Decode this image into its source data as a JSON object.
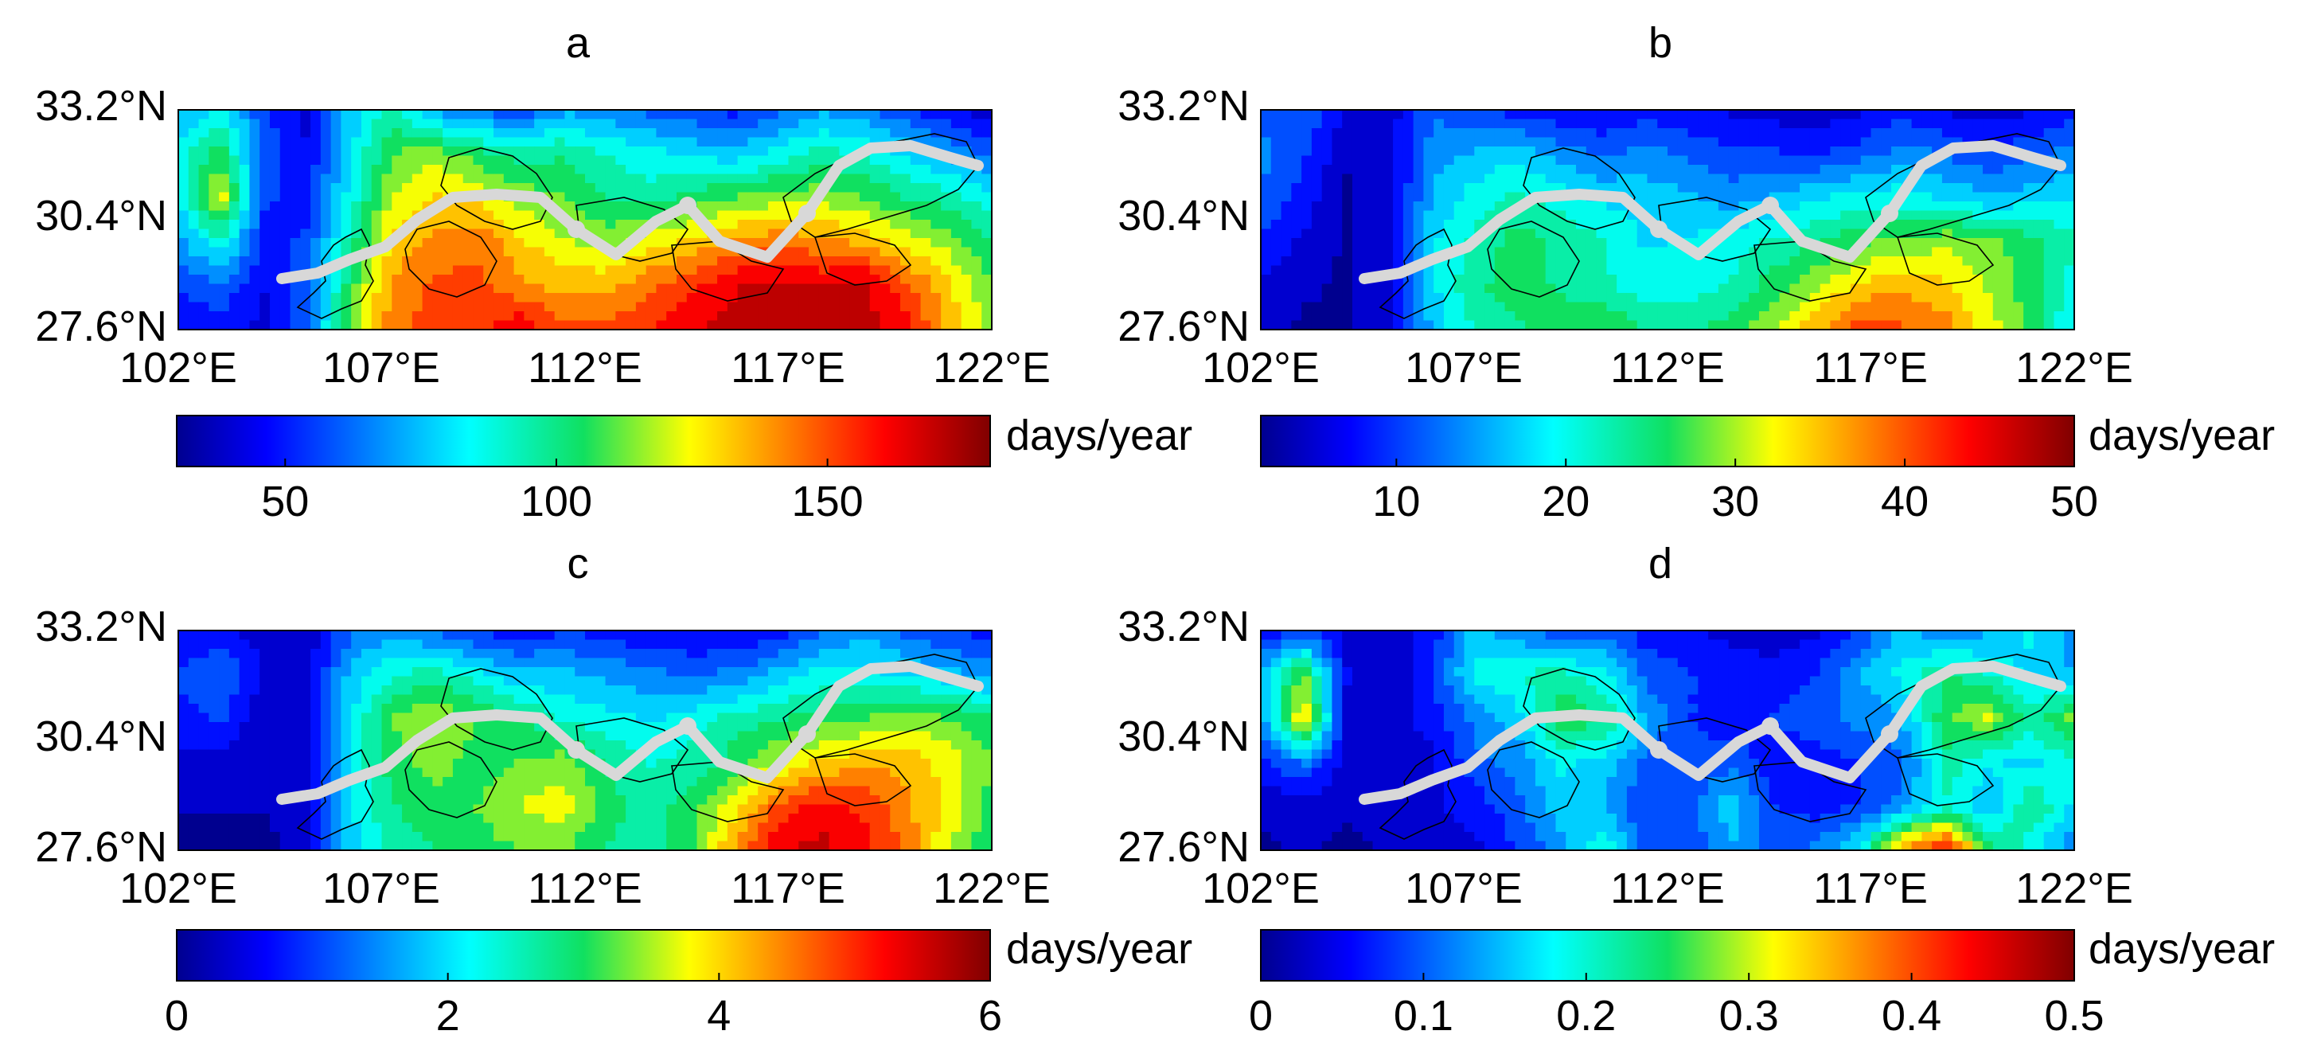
{
  "figure": {
    "panels": [
      {
        "id": "a",
        "title": "a",
        "lat_labels": [
          "33.2°N",
          "30.4°N",
          "27.6°N"
        ],
        "lon_labels": [
          "102°E",
          "107°E",
          "112°E",
          "117°E",
          "122°E"
        ],
        "colorbar": {
          "min": 30,
          "max": 180,
          "ticks": [
            "50",
            "100",
            "150"
          ],
          "tick_values": [
            50,
            100,
            150
          ],
          "unit": "days/year"
        },
        "field": [
          [
            70,
            85,
            55,
            40,
            75,
            95,
            70,
            60,
            55,
            70,
            65,
            60,
            55,
            50,
            60,
            70,
            65,
            55,
            45,
            40
          ],
          [
            85,
            105,
            60,
            45,
            80,
            110,
            115,
            105,
            95,
            100,
            90,
            85,
            80,
            75,
            85,
            95,
            90,
            80,
            70,
            60
          ],
          [
            80,
            125,
            55,
            50,
            85,
            120,
            130,
            125,
            115,
            110,
            100,
            95,
            105,
            110,
            115,
            115,
            110,
            100,
            95,
            85
          ],
          [
            70,
            90,
            50,
            55,
            95,
            130,
            140,
            145,
            130,
            120,
            115,
            125,
            130,
            140,
            145,
            140,
            135,
            125,
            115,
            100
          ],
          [
            55,
            60,
            45,
            60,
            105,
            140,
            150,
            150,
            140,
            135,
            135,
            145,
            155,
            165,
            170,
            165,
            170,
            150,
            130,
            110
          ],
          [
            45,
            50,
            40,
            60,
            110,
            145,
            150,
            155,
            165,
            150,
            150,
            155,
            165,
            170,
            175,
            175,
            170,
            160,
            135,
            115
          ]
        ]
      },
      {
        "id": "b",
        "title": "b",
        "lat_labels": [
          "33.2°N",
          "30.4°N",
          "27.6°N"
        ],
        "lon_labels": [
          "102°E",
          "107°E",
          "112°E",
          "117°E",
          "122°E"
        ],
        "colorbar": {
          "min": 2,
          "max": 50,
          "ticks": [
            "10",
            "20",
            "30",
            "40",
            "50"
          ],
          "tick_values": [
            10,
            20,
            30,
            40,
            50
          ],
          "unit": "days/year"
        },
        "field": [
          [
            10,
            12,
            6,
            5,
            12,
            10,
            8,
            7,
            6,
            8,
            7,
            6,
            5,
            5,
            6,
            8,
            6,
            5,
            6,
            8
          ],
          [
            14,
            10,
            4,
            5,
            14,
            16,
            18,
            14,
            12,
            14,
            12,
            10,
            10,
            9,
            11,
            14,
            12,
            10,
            12,
            14
          ],
          [
            12,
            8,
            3,
            5,
            16,
            20,
            22,
            20,
            18,
            17,
            16,
            14,
            16,
            18,
            20,
            20,
            18,
            16,
            17,
            18
          ],
          [
            9,
            6,
            3,
            6,
            18,
            22,
            26,
            24,
            22,
            18,
            19,
            20,
            22,
            24,
            27,
            28,
            30,
            28,
            26,
            22
          ],
          [
            6,
            4,
            3,
            6,
            18,
            24,
            26,
            24,
            22,
            20,
            20,
            22,
            26,
            30,
            34,
            36,
            34,
            30,
            26,
            20
          ],
          [
            4,
            3,
            3,
            6,
            16,
            22,
            24,
            26,
            28,
            24,
            24,
            26,
            30,
            36,
            42,
            40,
            38,
            32,
            26,
            18
          ]
        ]
      },
      {
        "id": "c",
        "title": "c",
        "lat_labels": [
          "33.2°N",
          "30.4°N",
          "27.6°N"
        ],
        "lon_labels": [
          "102°E",
          "107°E",
          "112°E",
          "117°E",
          "122°E"
        ],
        "colorbar": {
          "min": 0,
          "max": 6,
          "ticks": [
            "0",
            "2",
            "4",
            "6"
          ],
          "tick_values": [
            0,
            2,
            4,
            6
          ],
          "unit": "days/year"
        },
        "field": [
          [
            0.5,
            0.6,
            0.4,
            0.3,
            1.2,
            1.6,
            1.2,
            0.9,
            0.7,
            0.9,
            0.8,
            0.6,
            0.5,
            0.5,
            0.7,
            1.2,
            1.6,
            1.2,
            0.9,
            0.8
          ],
          [
            1.0,
            1.4,
            0.5,
            0.4,
            1.8,
            2.4,
            2.6,
            2.2,
            1.8,
            1.8,
            1.6,
            1.4,
            1.3,
            1.4,
            1.8,
            2.2,
            2.2,
            2.0,
            1.8,
            1.6
          ],
          [
            0.8,
            1.0,
            0.3,
            0.4,
            2.0,
            3.2,
            3.6,
            3.2,
            2.8,
            2.4,
            2.2,
            2.0,
            2.2,
            2.6,
            2.8,
            3.0,
            3.2,
            3.4,
            3.2,
            2.8
          ],
          [
            0.4,
            0.4,
            0.2,
            0.4,
            2.2,
            3.0,
            3.4,
            3.0,
            3.2,
            3.4,
            2.8,
            2.4,
            2.6,
            3.0,
            3.6,
            4.0,
            4.2,
            4.2,
            3.8,
            3.2
          ],
          [
            0.2,
            0.2,
            0.2,
            0.4,
            2.0,
            2.8,
            3.0,
            3.2,
            3.6,
            3.8,
            3.0,
            2.6,
            3.0,
            3.8,
            4.8,
            5.2,
            5.0,
            4.4,
            3.8,
            3.0
          ],
          [
            0.1,
            0.1,
            0.1,
            0.3,
            1.8,
            2.6,
            2.8,
            3.0,
            3.2,
            3.2,
            2.8,
            2.6,
            3.2,
            4.4,
            5.4,
            5.6,
            5.2,
            4.6,
            3.6,
            2.8
          ]
        ]
      },
      {
        "id": "d",
        "title": "d",
        "lat_labels": [
          "33.2°N",
          "30.4°N",
          "27.6°N"
        ],
        "lon_labels": [
          "102°E",
          "107°E",
          "112°E",
          "117°E",
          "122°E"
        ],
        "colorbar": {
          "min": 0,
          "max": 0.5,
          "ticks": [
            "0",
            "0.1",
            "0.2",
            "0.3",
            "0.4",
            "0.5"
          ],
          "tick_values": [
            0,
            0.1,
            0.2,
            0.3,
            0.4,
            0.5
          ],
          "unit": "days/year"
        },
        "field": [
          [
            0.05,
            0.08,
            0.03,
            0.02,
            0.06,
            0.15,
            0.12,
            0.08,
            0.1,
            0.06,
            0.05,
            0.04,
            0.03,
            0.04,
            0.08,
            0.16,
            0.1,
            0.14,
            0.18,
            0.12
          ],
          [
            0.15,
            0.28,
            0.05,
            0.02,
            0.08,
            0.18,
            0.2,
            0.22,
            0.18,
            0.1,
            0.08,
            0.06,
            0.06,
            0.08,
            0.14,
            0.18,
            0.24,
            0.2,
            0.16,
            0.14
          ],
          [
            0.12,
            0.34,
            0.04,
            0.03,
            0.06,
            0.12,
            0.16,
            0.26,
            0.24,
            0.14,
            0.08,
            0.06,
            0.08,
            0.1,
            0.12,
            0.14,
            0.26,
            0.3,
            0.22,
            0.28
          ],
          [
            0.06,
            0.12,
            0.03,
            0.02,
            0.04,
            0.1,
            0.12,
            0.18,
            0.16,
            0.1,
            0.08,
            0.1,
            0.06,
            0.06,
            0.08,
            0.1,
            0.22,
            0.18,
            0.16,
            0.2
          ],
          [
            0.02,
            0.03,
            0.02,
            0.02,
            0.04,
            0.06,
            0.1,
            0.16,
            0.14,
            0.08,
            0.1,
            0.16,
            0.08,
            0.06,
            0.08,
            0.12,
            0.2,
            0.14,
            0.24,
            0.16
          ],
          [
            0.01,
            0.02,
            0.01,
            0.02,
            0.03,
            0.04,
            0.08,
            0.12,
            0.2,
            0.1,
            0.08,
            0.14,
            0.1,
            0.12,
            0.18,
            0.38,
            0.44,
            0.26,
            0.18,
            0.12
          ]
        ]
      }
    ]
  }
}
